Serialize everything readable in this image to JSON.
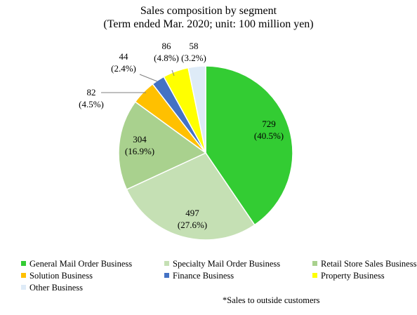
{
  "chart_data": {
    "type": "pie",
    "title": "Sales composition by segment",
    "subtitle": "(Term ended Mar. 2020; unit: 100 million yen)",
    "start_angle_deg": 0,
    "direction": "clockwise",
    "slices": [
      {
        "name": "General Mail Order Business",
        "value": 729,
        "label_value": "729",
        "label_pct": "(40.5%)",
        "color": "#33cc33"
      },
      {
        "name": "Specialty Mail Order Business",
        "value": 497,
        "label_value": "497",
        "label_pct": "(27.6%)",
        "color": "#c5e0b4"
      },
      {
        "name": "Retail Store Sales Business",
        "value": 304,
        "label_value": "304",
        "label_pct": "(16.9%)",
        "color": "#a9d18e"
      },
      {
        "name": "Solution Business",
        "value": 82,
        "label_value": "82",
        "label_pct": "(4.5%)",
        "color": "#ffc000"
      },
      {
        "name": "Finance Business",
        "value": 44,
        "label_value": "44",
        "label_pct": "(2.4%)",
        "color": "#4472c4"
      },
      {
        "name": "Property Business",
        "value": 86,
        "label_value": "86",
        "label_pct": "(4.8%)",
        "color": "#ffff00"
      },
      {
        "name": "Other Business",
        "value": 58,
        "label_value": "58",
        "label_pct": "(3.2%)",
        "color": "#deebf7"
      }
    ],
    "legend_position": "bottom",
    "footnote": "*Sales to outside customers"
  }
}
